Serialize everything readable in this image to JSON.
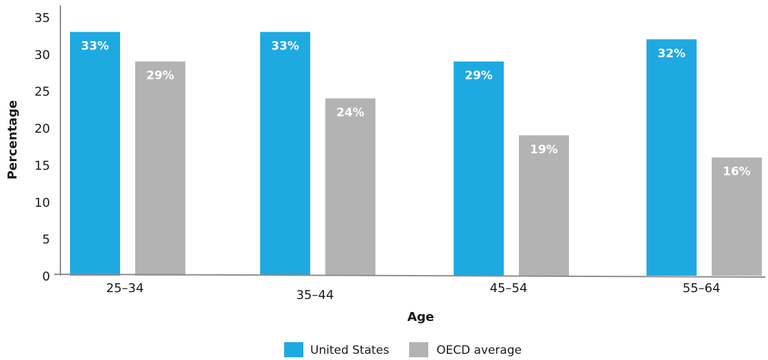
{
  "chart_data": {
    "type": "bar",
    "categories": [
      "25–34",
      "35–44",
      "45–54",
      "55–64"
    ],
    "series": [
      {
        "name": "United States",
        "values": [
          33,
          33,
          29,
          32
        ],
        "labels": [
          "33%",
          "33%",
          "29%",
          "32%"
        ],
        "color": "#1fa9e1"
      },
      {
        "name": "OECD average",
        "values": [
          29,
          24,
          19,
          16
        ],
        "labels": [
          "29%",
          "24%",
          "19%",
          "16%"
        ],
        "color": "#b3b3b3"
      }
    ],
    "xlabel": "Age",
    "ylabel": "Percentage",
    "ylim": [
      0,
      35
    ],
    "yticks": [
      "0",
      "5",
      "10",
      "15",
      "20",
      "25",
      "30",
      "35"
    ],
    "grid": false,
    "legend_position": "bottom-center"
  }
}
